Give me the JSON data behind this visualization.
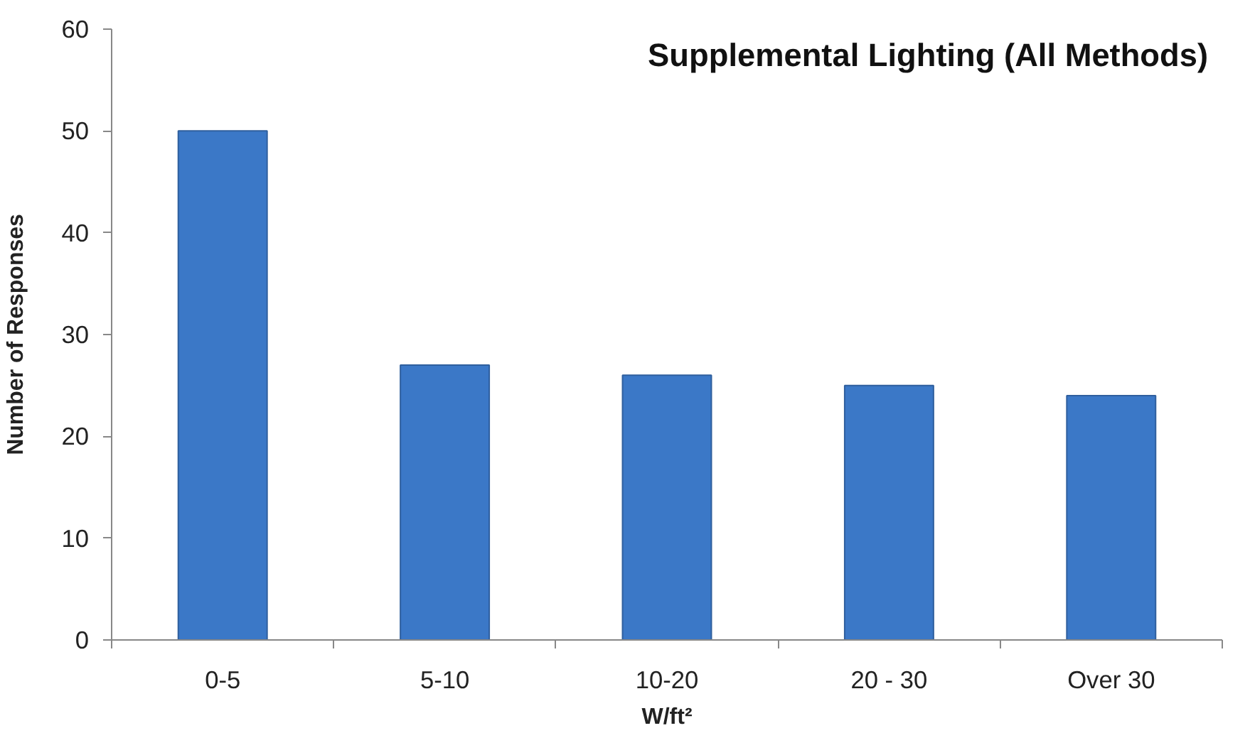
{
  "chart_data": {
    "type": "bar",
    "title": "Supplemental Lighting (All Methods)",
    "xlabel": "W/ft²",
    "ylabel": "Number of Responses",
    "categories": [
      "0-5",
      "5-10",
      "10-20",
      "20 - 30",
      "Over 30"
    ],
    "values": [
      50,
      27,
      26,
      25,
      24
    ],
    "color": "#3b78c7",
    "ylim": [
      0,
      60
    ],
    "yticks": [
      0,
      10,
      20,
      30,
      40,
      50,
      60
    ],
    "grid": false
  }
}
